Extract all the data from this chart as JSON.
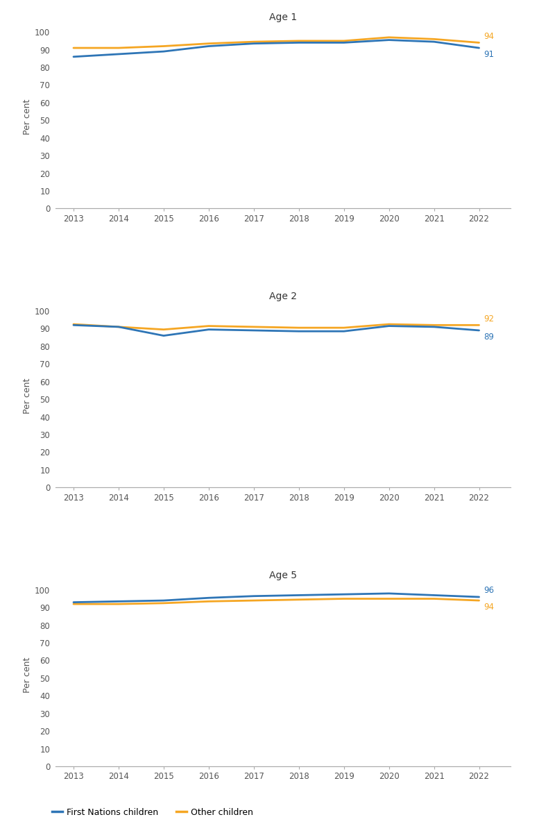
{
  "years": [
    2013,
    2014,
    2015,
    2016,
    2017,
    2018,
    2019,
    2020,
    2021,
    2022
  ],
  "age1": {
    "title": "Age 1",
    "first_nations": [
      86,
      87.5,
      89,
      92,
      93.5,
      94,
      94,
      95.5,
      94.5,
      91
    ],
    "other": [
      91,
      91,
      92,
      93.5,
      94.5,
      95,
      95,
      97,
      96,
      94
    ],
    "fn_end_label": "91",
    "other_end_label": "94"
  },
  "age2": {
    "title": "Age 2",
    "first_nations": [
      92,
      91,
      86,
      89.5,
      89,
      88.5,
      88.5,
      91.5,
      91,
      89
    ],
    "other": [
      92.5,
      91,
      89.5,
      91.5,
      91,
      90.5,
      90.5,
      92.5,
      92,
      92
    ],
    "fn_end_label": "89",
    "other_end_label": "92"
  },
  "age5": {
    "title": "Age 5",
    "first_nations": [
      93,
      93.5,
      94,
      95.5,
      96.5,
      97,
      97.5,
      98,
      97,
      96
    ],
    "other": [
      92,
      92,
      92.5,
      93.5,
      94,
      94.5,
      95,
      95,
      95,
      94
    ],
    "fn_end_label": "96",
    "other_end_label": "94"
  },
  "first_nations_color": "#2E75B6",
  "other_color": "#F5A623",
  "ylabel": "Per cent",
  "legend_fn": "First Nations children",
  "legend_other": "Other children",
  "yticks": [
    0,
    10,
    20,
    30,
    40,
    50,
    60,
    70,
    80,
    90,
    100
  ],
  "ylim_max": 104,
  "line_width": 2.0,
  "font_size_title": 10,
  "font_size_axis": 9,
  "font_size_tick": 8.5,
  "font_size_legend": 9,
  "font_size_label": 8.5,
  "bg_color": "#ffffff"
}
